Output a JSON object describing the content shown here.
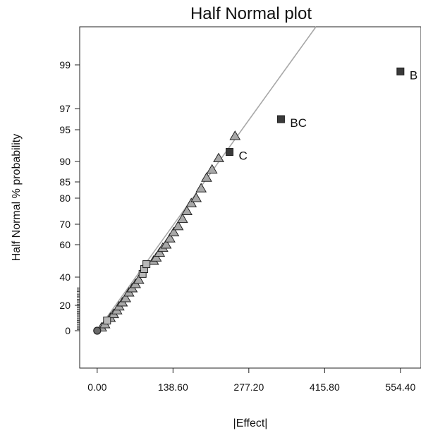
{
  "chart_data": {
    "type": "scatter",
    "title": "Half Normal plot",
    "xlabel": "|Effect|",
    "ylabel": "Half Normal % probability",
    "xlim": [
      -32,
      592
    ],
    "x_ticks": [
      0,
      138.6,
      277.2,
      415.8,
      554.4
    ],
    "x_tick_labels": [
      "0.00",
      "138.60",
      "277.20",
      "415.80",
      "554.40"
    ],
    "y_ticks": [
      0,
      20,
      40,
      60,
      70,
      80,
      85,
      90,
      95,
      97,
      99
    ],
    "y_tick_labels": [
      "0",
      "20",
      "40",
      "60",
      "70",
      "80",
      "85",
      "90",
      "95",
      "97",
      "99"
    ],
    "y_scale": "half-normal probability",
    "grid": false,
    "reference_line": {
      "x": [
        0,
        400
      ],
      "y": [
        0,
        99.8
      ]
    },
    "series": [
      {
        "marker": "triangle",
        "color": "#a8a8a8",
        "points": [
          {
            "x": 8,
            "y": 2.5
          },
          {
            "x": 14,
            "y": 5
          },
          {
            "x": 24,
            "y": 10
          },
          {
            "x": 30,
            "y": 13
          },
          {
            "x": 36,
            "y": 16
          },
          {
            "x": 40,
            "y": 19
          },
          {
            "x": 46,
            "y": 22
          },
          {
            "x": 52,
            "y": 25
          },
          {
            "x": 58,
            "y": 29
          },
          {
            "x": 64,
            "y": 32
          },
          {
            "x": 70,
            "y": 35
          },
          {
            "x": 76,
            "y": 38
          },
          {
            "x": 103,
            "y": 50
          },
          {
            "x": 108,
            "y": 52
          },
          {
            "x": 114,
            "y": 55
          },
          {
            "x": 120,
            "y": 58
          },
          {
            "x": 126,
            "y": 60
          },
          {
            "x": 133,
            "y": 63
          },
          {
            "x": 140,
            "y": 66
          },
          {
            "x": 148,
            "y": 69
          },
          {
            "x": 156,
            "y": 72
          },
          {
            "x": 164,
            "y": 75
          },
          {
            "x": 172,
            "y": 78
          },
          {
            "x": 181,
            "y": 80
          },
          {
            "x": 190,
            "y": 83
          },
          {
            "x": 200,
            "y": 86
          },
          {
            "x": 210,
            "y": 88
          },
          {
            "x": 222,
            "y": 90.5
          },
          {
            "x": 252,
            "y": 94
          }
        ]
      },
      {
        "marker": "square",
        "color": "#b8b8b8",
        "points": [
          {
            "x": 18,
            "y": 8
          },
          {
            "x": 83,
            "y": 42
          },
          {
            "x": 86,
            "y": 45
          },
          {
            "x": 90,
            "y": 48
          }
        ]
      },
      {
        "marker": "square",
        "color": "#3a3a3a",
        "points": [
          {
            "x": 242,
            "y": 91.5,
            "label": "C"
          },
          {
            "x": 336,
            "y": 96,
            "label": "BC"
          },
          {
            "x": 554.4,
            "y": 98.7,
            "label": "B"
          }
        ]
      },
      {
        "marker": "circle",
        "color": "#6a6a6a",
        "points": [
          {
            "x": 0,
            "y": 0
          }
        ]
      }
    ]
  }
}
